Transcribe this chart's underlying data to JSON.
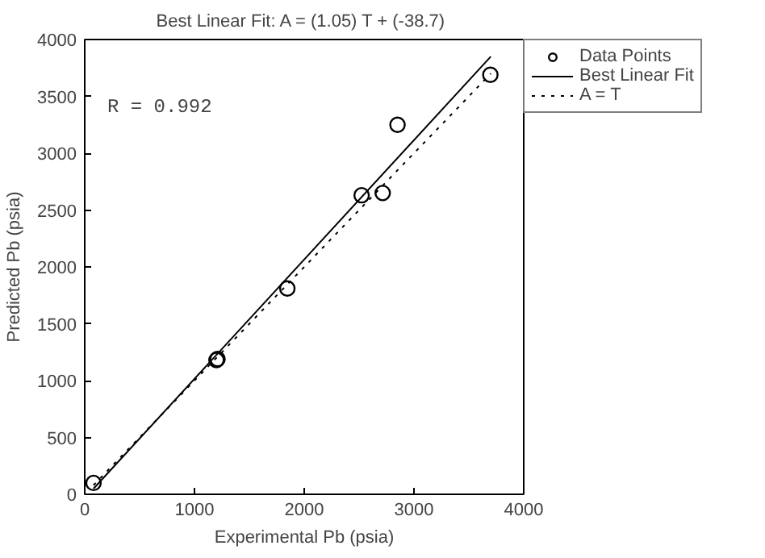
{
  "chart_data": {
    "type": "scatter",
    "title": "Best Linear Fit:  A = (1.05) T + (-38.7)",
    "xlabel": "Experimental Pb (psia)",
    "ylabel": "Predicted Pb (psia)",
    "xlim": [
      0,
      4000
    ],
    "ylim": [
      0,
      4000
    ],
    "xticks": [
      0,
      1000,
      2000,
      3000,
      4000
    ],
    "yticks": [
      0,
      500,
      1000,
      1500,
      2000,
      2500,
      3000,
      3500,
      4000
    ],
    "grid": false,
    "legend": "top right",
    "annotations": [
      "R = 0.992"
    ],
    "series": [
      {
        "name": "Data Points",
        "marker": "circle",
        "color": "#000000",
        "x": [
          80,
          1200,
          1210,
          1846,
          2523,
          2715,
          2850,
          3696
        ],
        "values": [
          100,
          1180,
          1190,
          1810,
          2630,
          2650,
          3250,
          3690
        ]
      },
      {
        "name": "Best Linear Fit",
        "type": "line",
        "line_style": "solid",
        "color": "#000000",
        "x": [
          80,
          3700
        ],
        "values": [
          50,
          3850
        ]
      },
      {
        "name": "A = T",
        "type": "line",
        "line_style": "dotted",
        "color": "#000000",
        "x": [
          80,
          3700
        ],
        "values": [
          80,
          3700
        ]
      }
    ]
  }
}
